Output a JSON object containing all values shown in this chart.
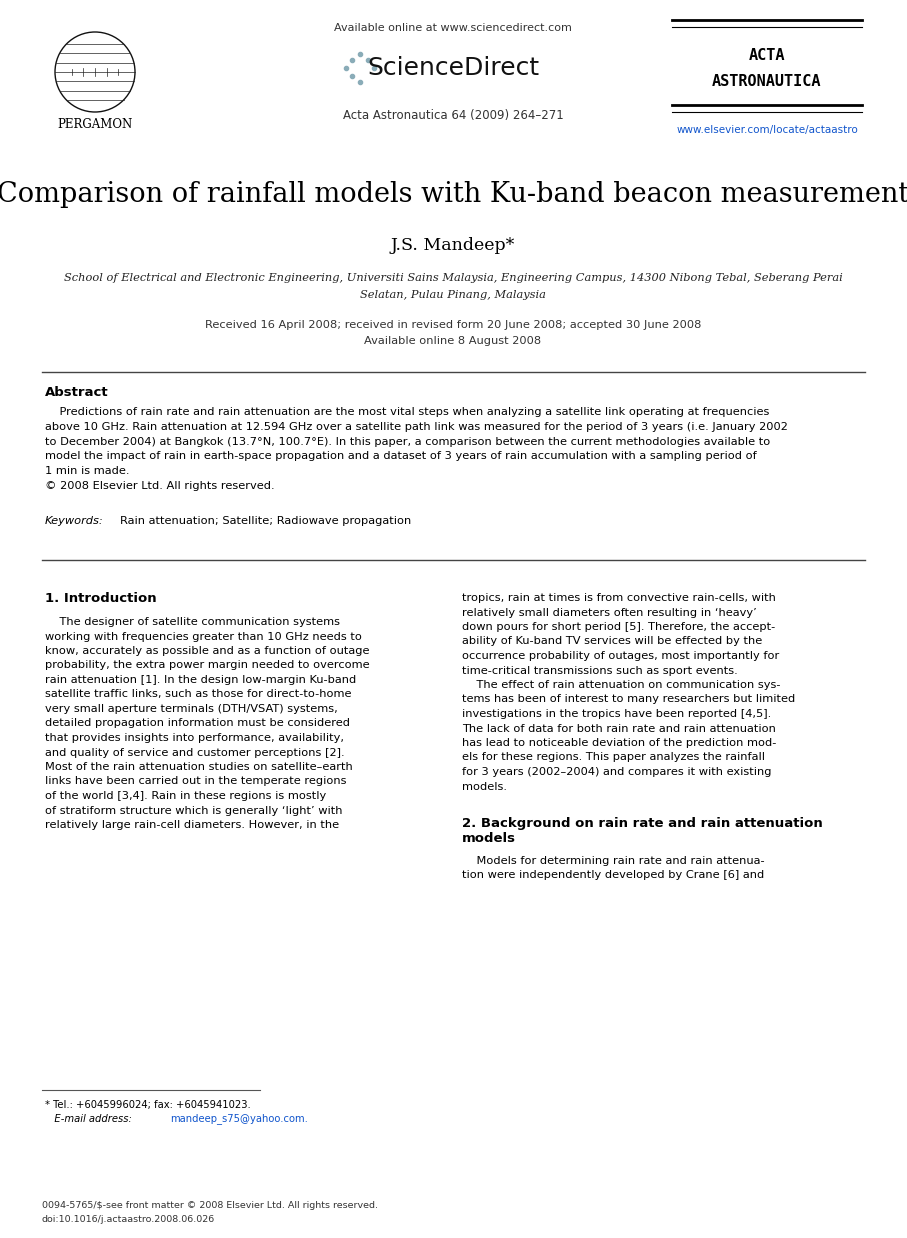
{
  "bg_color": "#ffffff",
  "title": "Comparison of rainfall models with Ku-band beacon measurement",
  "author": "J.S. Mandeep*",
  "affiliation_line1": "School of Electrical and Electronic Engineering, Universiti Sains Malaysia, Engineering Campus, 14300 Nibong Tebal, Seberang Perai",
  "affiliation_line2": "Selatan, Pulau Pinang, Malaysia",
  "received": "Received 16 April 2008; received in revised form 20 June 2008; accepted 30 June 2008",
  "available": "Available online 8 August 2008",
  "journal_info": "Acta Astronautica 64 (2009) 264–271",
  "available_online": "Available online at www.sciencedirect.com",
  "publisher_left": "PERGAMON",
  "elsevier_link": "www.elsevier.com/locate/actaastro",
  "abstract_title": "Abstract",
  "keywords_label": "Keywords:",
  "keywords_text": "Rain attenuation; Satellite; Radiowave propagation",
  "section1_title": "1. Introduction",
  "section2_title": "2. Background on rain rate and rain attenuation",
  "section2_title2": "models",
  "footnote_star": "* Tel.: +6045996024; fax: +6045941023.",
  "footnote_email_label": "E-mail address:",
  "footnote_email": "mandeep_s75@yahoo.com.",
  "footer_left": "0094-5765/$-see front matter © 2008 Elsevier Ltd. All rights reserved.",
  "footer_doi": "doi:10.1016/j.actaastro.2008.06.026",
  "sciencedirect_text": "ScienceDirect",
  "acta_line1": "ACTA",
  "acta_line2": "ASTRONAUTICA",
  "abstract_lines": [
    "    Predictions of rain rate and rain attenuation are the most vital steps when analyzing a satellite link operating at frequencies",
    "above 10 GHz. Rain attenuation at 12.594 GHz over a satellite path link was measured for the period of 3 years (i.e. January 2002",
    "to December 2004) at Bangkok (13.7°N, 100.7°E). In this paper, a comparison between the current methodologies available to",
    "model the impact of rain in earth-space propagation and a dataset of 3 years of rain accumulation with a sampling period of",
    "1 min is made.",
    "© 2008 Elsevier Ltd. All rights reserved."
  ],
  "col1_lines": [
    "    The designer of satellite communication systems",
    "working with frequencies greater than 10 GHz needs to",
    "know, accurately as possible and as a function of outage",
    "probability, the extra power margin needed to overcome",
    "rain attenuation [1]. In the design low-margin Ku-band",
    "satellite traffic links, such as those for direct-to-home",
    "very small aperture terminals (DTH/VSAT) systems,",
    "detailed propagation information must be considered",
    "that provides insights into performance, availability,",
    "and quality of service and customer perceptions [2].",
    "Most of the rain attenuation studies on satellite–earth",
    "links have been carried out in the temperate regions",
    "of the world [3,4]. Rain in these regions is mostly",
    "of stratiform structure which is generally ‘light’ with",
    "relatively large rain-cell diameters. However, in the"
  ],
  "col2_lines": [
    "tropics, rain at times is from convective rain-cells, with",
    "relatively small diameters often resulting in ‘heavy’",
    "down pours for short period [5]. Therefore, the accept-",
    "ability of Ku-band TV services will be effected by the",
    "occurrence probability of outages, most importantly for",
    "time-critical transmissions such as sport events.",
    "    The effect of rain attenuation on communication sys-",
    "tems has been of interest to many researchers but limited",
    "investigations in the tropics have been reported [4,5].",
    "The lack of data for both rain rate and rain attenuation",
    "has lead to noticeable deviation of the prediction mod-",
    "els for these regions. This paper analyzes the rainfall",
    "for 3 years (2002–2004) and compares it with existing",
    "models."
  ],
  "sec2_col2_lines": [
    "    Models for determining rain rate and rain attenua-",
    "tion were independently developed by Crane [6] and"
  ]
}
